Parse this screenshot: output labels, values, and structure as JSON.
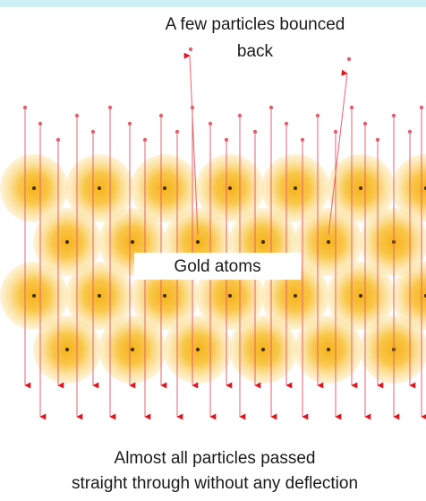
{
  "labels": {
    "bounced": [
      "A few particles bounced",
      "back"
    ],
    "atoms": "Gold atoms",
    "passed": [
      "Almost all particles passed",
      "straight through without any deflection"
    ]
  }
}
